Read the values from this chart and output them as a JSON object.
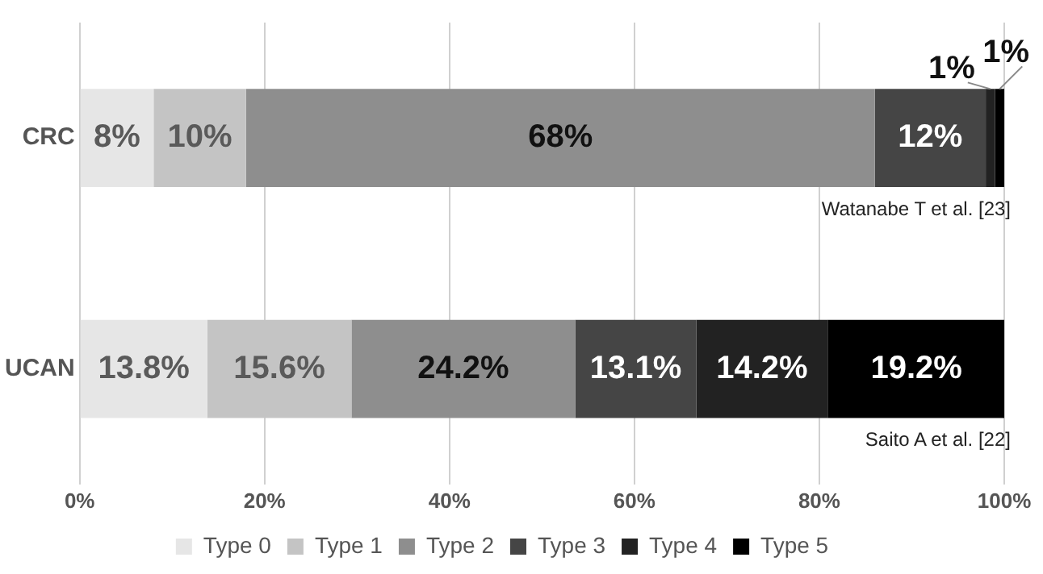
{
  "chart_data": {
    "type": "bar",
    "orientation": "horizontal",
    "stacked": true,
    "categories": [
      "CRC",
      "UCAN"
    ],
    "series": [
      {
        "name": "Type 0",
        "color": "#e6e6e6",
        "values": [
          8,
          13.8
        ],
        "value_labels": [
          "8%",
          "13.8%"
        ]
      },
      {
        "name": "Type 1",
        "color": "#c4c4c4",
        "values": [
          10,
          15.6
        ],
        "value_labels": [
          "10%",
          "15.6%"
        ]
      },
      {
        "name": "Type 2",
        "color": "#8e8e8e",
        "values": [
          68,
          24.2
        ],
        "value_labels": [
          "68%",
          "24.2%"
        ]
      },
      {
        "name": "Type 3",
        "color": "#454545",
        "values": [
          12,
          13.1
        ],
        "value_labels": [
          "12%",
          "13.1%"
        ]
      },
      {
        "name": "Type 4",
        "color": "#222222",
        "values": [
          1,
          14.2
        ],
        "value_labels": [
          "1%",
          "14.2%"
        ]
      },
      {
        "name": "Type 5",
        "color": "#000000",
        "values": [
          1,
          19.2
        ],
        "value_labels": [
          "1%",
          "19.2%"
        ]
      }
    ],
    "xlim": [
      0,
      100
    ],
    "xticks": [
      {
        "value": 0,
        "label": "0%"
      },
      {
        "value": 20,
        "label": "20%"
      },
      {
        "value": 40,
        "label": "40%"
      },
      {
        "value": 60,
        "label": "60%"
      },
      {
        "value": 80,
        "label": "80%"
      },
      {
        "value": 100,
        "label": "100%"
      }
    ],
    "grid": "x",
    "legend": "bottom",
    "annotations": [
      "Watanabe T et al. [23]",
      "Saito A et al. [22]"
    ]
  }
}
